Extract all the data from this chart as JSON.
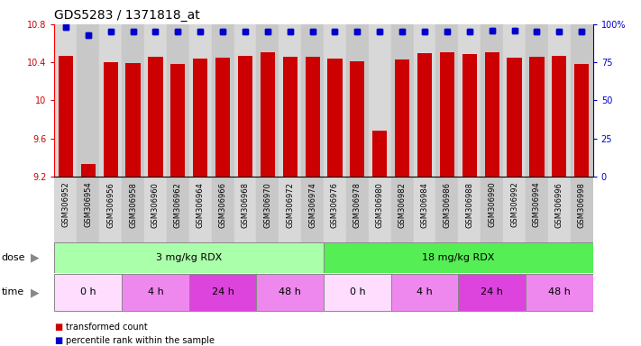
{
  "title": "GDS5283 / 1371818_at",
  "samples": [
    "GSM306952",
    "GSM306954",
    "GSM306956",
    "GSM306958",
    "GSM306960",
    "GSM306962",
    "GSM306964",
    "GSM306966",
    "GSM306968",
    "GSM306970",
    "GSM306972",
    "GSM306974",
    "GSM306976",
    "GSM306978",
    "GSM306980",
    "GSM306982",
    "GSM306984",
    "GSM306986",
    "GSM306988",
    "GSM306990",
    "GSM306992",
    "GSM306994",
    "GSM306996",
    "GSM306998"
  ],
  "bar_values": [
    10.47,
    9.33,
    10.4,
    10.39,
    10.46,
    10.38,
    10.44,
    10.45,
    10.47,
    10.51,
    10.46,
    10.46,
    10.44,
    10.41,
    9.68,
    10.43,
    10.5,
    10.51,
    10.49,
    10.51,
    10.45,
    10.46,
    10.47,
    10.38
  ],
  "percentile_values": [
    98,
    93,
    95,
    95,
    95,
    95,
    95,
    95,
    95,
    95,
    95,
    95,
    95,
    95,
    95,
    95,
    95,
    95,
    95,
    96,
    96,
    95,
    95,
    95
  ],
  "bar_color": "#cc0000",
  "percentile_color": "#0000cc",
  "ymin": 9.2,
  "ymax": 10.8,
  "yticks": [
    9.2,
    9.6,
    10.0,
    10.4,
    10.8
  ],
  "ytick_labels": [
    "9.2",
    "9.6",
    "10",
    "10.4",
    "10.8"
  ],
  "right_ytick_pcts": [
    0,
    25,
    50,
    75,
    100
  ],
  "right_yticklabels": [
    "0",
    "25",
    "50",
    "75",
    "100%"
  ],
  "dose_groups": [
    {
      "label": "3 mg/kg RDX",
      "start": 0,
      "end": 12,
      "color": "#aaffaa"
    },
    {
      "label": "18 mg/kg RDX",
      "start": 12,
      "end": 24,
      "color": "#55ee55"
    }
  ],
  "time_groups": [
    {
      "label": "0 h",
      "start": 0,
      "end": 3,
      "color": "#ffddff"
    },
    {
      "label": "4 h",
      "start": 3,
      "end": 6,
      "color": "#ee88ee"
    },
    {
      "label": "24 h",
      "start": 6,
      "end": 9,
      "color": "#dd44dd"
    },
    {
      "label": "48 h",
      "start": 9,
      "end": 12,
      "color": "#ee88ee"
    },
    {
      "label": "0 h",
      "start": 12,
      "end": 15,
      "color": "#ffddff"
    },
    {
      "label": "4 h",
      "start": 15,
      "end": 18,
      "color": "#ee88ee"
    },
    {
      "label": "24 h",
      "start": 18,
      "end": 21,
      "color": "#dd44dd"
    },
    {
      "label": "48 h",
      "start": 21,
      "end": 24,
      "color": "#ee88ee"
    }
  ],
  "legend_items": [
    {
      "label": "transformed count",
      "color": "#cc0000"
    },
    {
      "label": "percentile rank within the sample",
      "color": "#0000cc"
    }
  ],
  "bg_color": "#ffffff",
  "title_fontsize": 10,
  "tick_fontsize": 7,
  "label_fontsize": 8,
  "xtick_fontsize": 6
}
